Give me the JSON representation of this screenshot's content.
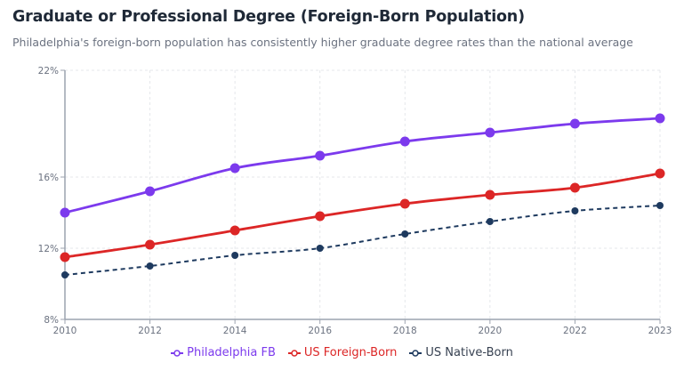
{
  "title": "Graduate or Professional Degree (Foreign-Born Population)",
  "subtitle": "Philadelphia's foreign-born population has consistently higher graduate degree rates than the national average",
  "chart_data": {
    "type": "line",
    "categories": [
      "2010",
      "2012",
      "2014",
      "2016",
      "2018",
      "2020",
      "2022",
      "2023"
    ],
    "ylim": [
      8,
      22
    ],
    "yticks": [
      8,
      12,
      16,
      22
    ],
    "ytick_labels": [
      "8%",
      "12%",
      "16%",
      "22%"
    ],
    "grid": true,
    "legend": "bottom",
    "series": [
      {
        "name": "Philadelphia FB",
        "color": "#7c3aed",
        "dashed": false,
        "values": [
          14.0,
          15.2,
          16.5,
          17.2,
          18.0,
          18.5,
          19.0,
          19.3
        ]
      },
      {
        "name": "US Foreign-Born",
        "color": "#dc2626",
        "dashed": false,
        "values": [
          11.5,
          12.2,
          13.0,
          13.8,
          14.5,
          15.0,
          15.4,
          16.2
        ]
      },
      {
        "name": "US Native-Born",
        "color": "#1e3a5f",
        "dashed": true,
        "values": [
          10.5,
          11.0,
          11.6,
          12.0,
          12.8,
          13.5,
          14.1,
          14.4
        ]
      }
    ]
  }
}
